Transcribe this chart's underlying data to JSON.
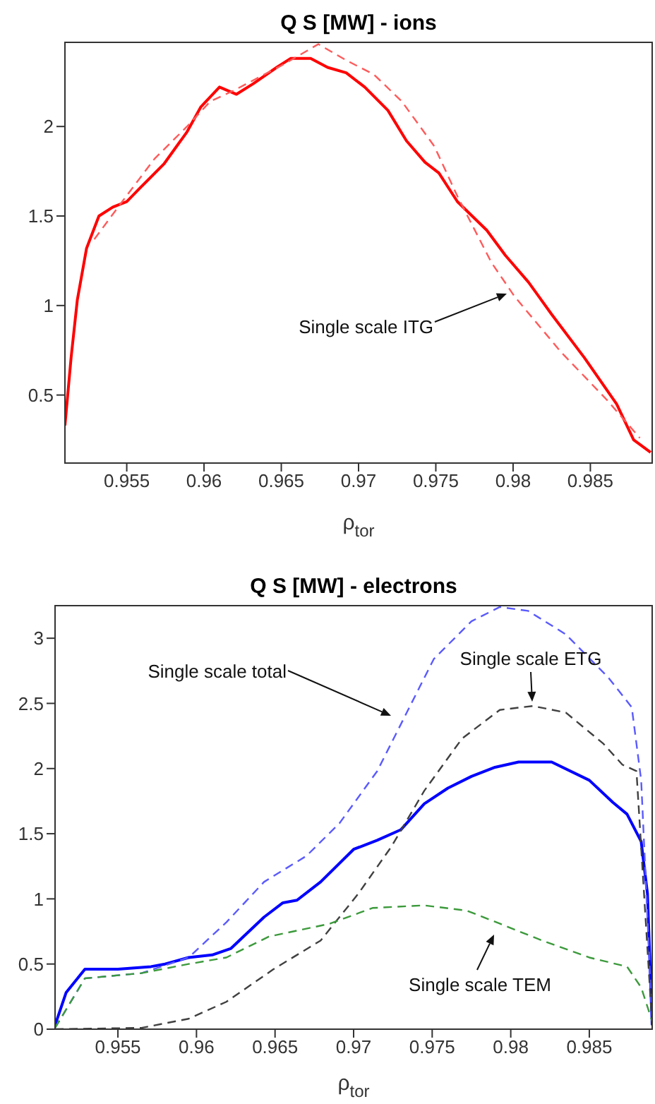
{
  "chart_data": [
    {
      "type": "line",
      "title": "Q S [MW] - ions",
      "xlabel": "ρ$_{tor}$",
      "xlim": [
        0.951,
        0.989
      ],
      "xticks": [
        0.955,
        0.96,
        0.965,
        0.97,
        0.975,
        0.98,
        0.985
      ],
      "ylim": [
        0.12,
        2.47
      ],
      "yticks": [
        0.5,
        1,
        1.5,
        2
      ],
      "marker": "none",
      "annotations": [
        "Single scale ITG"
      ],
      "series": [
        {
          "color": "#ff0000",
          "line_style": "solid",
          "x": [
            0.951,
            0.9514,
            0.9518,
            0.9524,
            0.9532,
            0.9541,
            0.955,
            0.9559,
            0.9574,
            0.9589,
            0.9598,
            0.961,
            0.9621,
            0.9632,
            0.9647,
            0.9656,
            0.9669,
            0.968,
            0.9692,
            0.9704,
            0.9719,
            0.9731,
            0.9743,
            0.9752,
            0.9764,
            0.9783,
            0.9795,
            0.981,
            0.9825,
            0.9846,
            0.9867,
            0.9878,
            0.9889
          ],
          "values": [
            0.33,
            0.71,
            1.03,
            1.32,
            1.5,
            1.55,
            1.58,
            1.66,
            1.79,
            1.97,
            2.11,
            2.22,
            2.18,
            2.24,
            2.33,
            2.38,
            2.38,
            2.33,
            2.3,
            2.22,
            2.09,
            1.92,
            1.8,
            1.74,
            1.58,
            1.42,
            1.28,
            1.13,
            0.95,
            0.71,
            0.45,
            0.25,
            0.18
          ]
        },
        {
          "color": "#ff5a5a",
          "line_style": "dashed",
          "x": [
            0.9529,
            0.9547,
            0.9568,
            0.9589,
            0.9604,
            0.9619,
            0.965,
            0.9674,
            0.9692,
            0.971,
            0.9728,
            0.9749,
            0.9764,
            0.9786,
            0.9801,
            0.9831,
            0.9861,
            0.9882
          ],
          "values": [
            1.37,
            1.58,
            1.82,
            2.0,
            2.14,
            2.2,
            2.34,
            2.46,
            2.37,
            2.29,
            2.14,
            1.89,
            1.61,
            1.24,
            1.05,
            0.74,
            0.47,
            0.26
          ]
        }
      ]
    },
    {
      "type": "line",
      "title": "Q S [MW] - electrons",
      "xlabel": "ρ$_{tor}$",
      "xlim": [
        0.951,
        0.989
      ],
      "xticks": [
        0.955,
        0.96,
        0.965,
        0.97,
        0.975,
        0.98,
        0.985
      ],
      "ylim": [
        0,
        3.25
      ],
      "yticks": [
        0,
        0.5,
        1,
        1.5,
        2,
        2.5,
        3
      ],
      "marker": "none",
      "annotations": [
        "Single scale total",
        "Single scale ETG",
        "Single scale TEM"
      ],
      "series": [
        {
          "color": "#0000ff",
          "line_style": "solid",
          "x": [
            0.951,
            0.9517,
            0.9529,
            0.955,
            0.9571,
            0.958,
            0.9595,
            0.961,
            0.9622,
            0.9643,
            0.9655,
            0.9664,
            0.9679,
            0.97,
            0.9715,
            0.973,
            0.9745,
            0.976,
            0.9775,
            0.979,
            0.9805,
            0.9826,
            0.985,
            0.9865,
            0.9874,
            0.9883,
            0.9887,
            0.989
          ],
          "values": [
            0.03,
            0.28,
            0.46,
            0.46,
            0.48,
            0.5,
            0.55,
            0.57,
            0.62,
            0.86,
            0.97,
            0.99,
            1.13,
            1.38,
            1.45,
            1.53,
            1.73,
            1.85,
            1.94,
            2.01,
            2.05,
            2.05,
            1.91,
            1.74,
            1.65,
            1.44,
            1.04,
            0.03
          ]
        },
        {
          "color": "#5a5aff",
          "line_style": "dashed",
          "x": [
            0.951,
            0.9529,
            0.9565,
            0.9595,
            0.9619,
            0.9643,
            0.967,
            0.9691,
            0.9715,
            0.9733,
            0.9751,
            0.9775,
            0.9793,
            0.9811,
            0.9835,
            0.9862,
            0.9877,
            0.9883,
            0.989
          ],
          "values": [
            0.01,
            0.39,
            0.43,
            0.55,
            0.82,
            1.13,
            1.33,
            1.58,
            1.98,
            2.41,
            2.84,
            3.13,
            3.24,
            3.21,
            3.03,
            2.7,
            2.47,
            1.91,
            0.06
          ]
        },
        {
          "color": "#404040",
          "line_style": "dashed",
          "x": [
            0.951,
            0.9565,
            0.9595,
            0.9619,
            0.9649,
            0.9679,
            0.9703,
            0.9724,
            0.9745,
            0.9769,
            0.9793,
            0.9814,
            0.9835,
            0.9859,
            0.9871,
            0.988,
            0.989
          ],
          "values": [
            0,
            0.01,
            0.08,
            0.21,
            0.46,
            0.68,
            1.04,
            1.4,
            1.83,
            2.23,
            2.45,
            2.48,
            2.43,
            2.19,
            2.03,
            1.98,
            0.03
          ]
        },
        {
          "color": "#3c9a3c",
          "line_style": "dashed",
          "x": [
            0.951,
            0.9529,
            0.9565,
            0.9595,
            0.9619,
            0.9646,
            0.9685,
            0.9712,
            0.9745,
            0.9772,
            0.9793,
            0.982,
            0.985,
            0.9874,
            0.9883,
            0.989
          ],
          "values": [
            0.01,
            0.39,
            0.43,
            0.5,
            0.55,
            0.71,
            0.81,
            0.93,
            0.95,
            0.91,
            0.81,
            0.68,
            0.55,
            0.48,
            0.32,
            0.06
          ]
        }
      ]
    }
  ]
}
